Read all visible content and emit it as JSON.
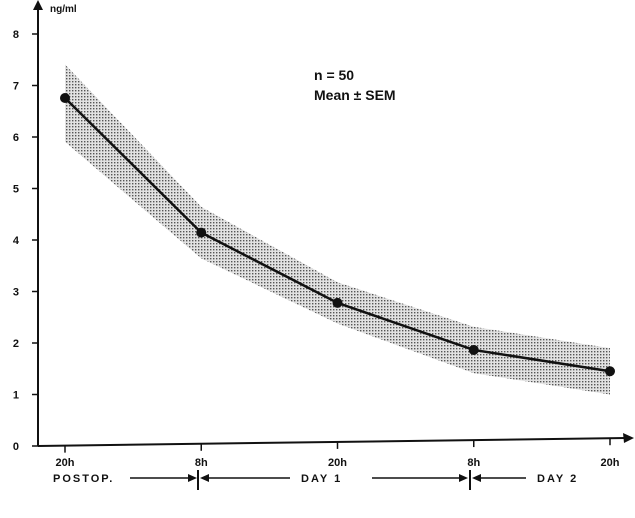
{
  "chart_data": {
    "type": "line",
    "ylabel": "ng/ml",
    "ylim": [
      0,
      8
    ],
    "y_ticks": [
      "0",
      "1",
      "2",
      "3",
      "4",
      "5",
      "6",
      "7",
      "8"
    ],
    "categories": [
      "20h",
      "8h",
      "20h",
      "8h",
      "20h"
    ],
    "series": [
      {
        "values": [
          6.75,
          4.1,
          2.7,
          1.75,
          1.3
        ],
        "sem_upper": [
          7.4,
          4.6,
          3.1,
          2.2,
          1.75
        ],
        "sem_lower": [
          5.9,
          3.6,
          2.3,
          1.3,
          0.85
        ]
      }
    ],
    "annotations": [
      "n = 50",
      "Mean ± SEM"
    ],
    "periods": [
      "POSTOP.",
      "DAY 1",
      "DAY 2"
    ],
    "grid": false,
    "band_color": "#9a9a9a",
    "line_color": "#111111"
  }
}
